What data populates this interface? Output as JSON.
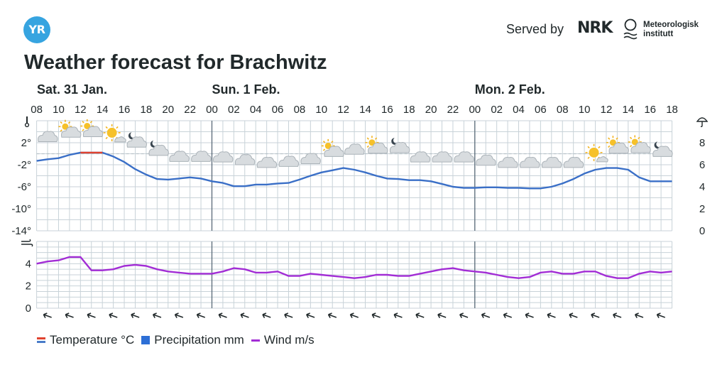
{
  "header": {
    "logo_text": "YR",
    "served_by": "Served by",
    "nrk_logo": "NRK",
    "met_line1": "Meteorologisk",
    "met_line2": "institutt",
    "title": "Weather forecast for Brachwitz"
  },
  "legend": {
    "temperature": "Temperature °C",
    "precipitation": "Precipitation mm",
    "wind": "Wind m/s"
  },
  "colors": {
    "temperature_line": "#3a6fc7",
    "temperature_warm": "#e0422f",
    "wind_line": "#a22dd5",
    "grid": "#c8d2d8",
    "day_divider": "#5a6a78",
    "logo": "#36a4e0"
  },
  "chart_data": {
    "type": "line",
    "days": [
      {
        "label": "Sat. 31 Jan.",
        "start_index": 0
      },
      {
        "label": "Sun. 1 Feb.",
        "start_index": 8
      },
      {
        "label": "Mon. 2 Feb.",
        "start_index": 20
      }
    ],
    "hour_labels": [
      "08",
      "10",
      "12",
      "14",
      "16",
      "18",
      "20",
      "22",
      "00",
      "02",
      "04",
      "06",
      "08",
      "10",
      "12",
      "14",
      "16",
      "18",
      "20",
      "22",
      "00",
      "02",
      "04",
      "06",
      "08",
      "10",
      "12",
      "14",
      "16",
      "18"
    ],
    "temperature": {
      "name": "Temperature °C",
      "ylim": [
        -14,
        6
      ],
      "yticks_left": [
        "2°",
        "-2°",
        "-6°",
        "-10°",
        "-14°"
      ],
      "ytick_values": [
        2,
        -2,
        -6,
        -10,
        -14
      ],
      "precip_yticks_right": [
        "8",
        "6",
        "4",
        "2",
        "0"
      ],
      "x": [
        0,
        0.5,
        1,
        1.5,
        2,
        2.5,
        3,
        3.5,
        4,
        4.5,
        5,
        5.5,
        6,
        6.5,
        7,
        7.5,
        8,
        8.5,
        9,
        9.5,
        10,
        10.5,
        11,
        11.5,
        12,
        12.5,
        13,
        13.5,
        14,
        14.5,
        15,
        15.5,
        16,
        16.5,
        17,
        17.5,
        18,
        18.5,
        19,
        19.5,
        20,
        20.5,
        21,
        21.5,
        22,
        22.5,
        23,
        23.5,
        24,
        24.5,
        25,
        25.5,
        26,
        26.5,
        27,
        27.5,
        28,
        28.5,
        29
      ],
      "values": [
        -1.3,
        -1.0,
        -0.8,
        -0.2,
        0.2,
        0.2,
        0.2,
        -0.5,
        -1.5,
        -2.8,
        -3.8,
        -4.6,
        -4.7,
        -4.5,
        -4.3,
        -4.5,
        -5.0,
        -5.3,
        -5.9,
        -5.9,
        -5.6,
        -5.6,
        -5.4,
        -5.3,
        -4.7,
        -4.0,
        -3.4,
        -3.0,
        -2.6,
        -2.9,
        -3.4,
        -4.0,
        -4.5,
        -4.6,
        -4.8,
        -4.8,
        -5.0,
        -5.5,
        -6.0,
        -6.2,
        -6.2,
        -6.1,
        -6.1,
        -6.2,
        -6.2,
        -6.3,
        -6.3,
        -6.0,
        -5.4,
        -4.6,
        -3.6,
        -2.9,
        -2.6,
        -2.6,
        -2.9,
        -4.3,
        -5.0,
        -5.0,
        -5.0
      ]
    },
    "wind": {
      "name": "Wind m/s",
      "ylim": [
        0,
        6
      ],
      "yticks": [
        "4",
        "2",
        "0"
      ],
      "ytick_values": [
        4,
        2,
        0
      ],
      "x": [
        0,
        0.5,
        1,
        1.5,
        2,
        2.5,
        3,
        3.5,
        4,
        4.5,
        5,
        5.5,
        6,
        6.5,
        7,
        7.5,
        8,
        8.5,
        9,
        9.5,
        10,
        10.5,
        11,
        11.5,
        12,
        12.5,
        13,
        13.5,
        14,
        14.5,
        15,
        15.5,
        16,
        16.5,
        17,
        17.5,
        18,
        18.5,
        19,
        19.5,
        20,
        20.5,
        21,
        21.5,
        22,
        22.5,
        23,
        23.5,
        24,
        24.5,
        25,
        25.5,
        26,
        26.5,
        27,
        27.5,
        28,
        28.5,
        29
      ],
      "values": [
        4.0,
        4.2,
        4.3,
        4.6,
        4.6,
        3.4,
        3.4,
        3.5,
        3.8,
        3.9,
        3.8,
        3.5,
        3.3,
        3.2,
        3.1,
        3.1,
        3.1,
        3.3,
        3.6,
        3.5,
        3.2,
        3.2,
        3.3,
        2.9,
        2.9,
        3.1,
        3.0,
        2.9,
        2.8,
        2.7,
        2.8,
        3.0,
        3.0,
        2.9,
        2.9,
        3.1,
        3.3,
        3.5,
        3.6,
        3.4,
        3.3,
        3.2,
        3.0,
        2.8,
        2.7,
        2.8,
        3.2,
        3.3,
        3.1,
        3.1,
        3.3,
        3.3,
        2.9,
        2.7,
        2.7,
        3.1,
        3.3,
        3.2,
        3.3
      ]
    },
    "wind_direction_arrows": [
      "sw",
      "sw",
      "sw",
      "sw",
      "sw",
      "sw",
      "sw",
      "sw",
      "sw",
      "sw",
      "sw",
      "sw",
      "sw",
      "sw",
      "sw",
      "sw",
      "sw",
      "sw",
      "sw",
      "sw",
      "sw",
      "sw",
      "sw",
      "sw",
      "sw",
      "sw",
      "sw",
      "sw",
      "sw",
      "sw"
    ],
    "symbols": [
      {
        "x": 0.5,
        "temp": 3.1,
        "icon": "cloud"
      },
      {
        "x": 1.5,
        "temp": 3.9,
        "icon": "partly-cloudy-day"
      },
      {
        "x": 2.5,
        "temp": 4.0,
        "icon": "partly-cloudy-day"
      },
      {
        "x": 3.5,
        "temp": 3.3,
        "icon": "sun-cloud"
      },
      {
        "x": 4.5,
        "temp": 2.1,
        "icon": "partly-cloudy-night"
      },
      {
        "x": 5.5,
        "temp": 0.6,
        "icon": "partly-cloudy-night"
      },
      {
        "x": 6.5,
        "temp": -0.5,
        "icon": "cloud"
      },
      {
        "x": 7.5,
        "temp": -0.5,
        "icon": "cloud"
      },
      {
        "x": 8.5,
        "temp": -0.6,
        "icon": "cloud"
      },
      {
        "x": 9.5,
        "temp": -1.1,
        "icon": "cloud"
      },
      {
        "x": 10.5,
        "temp": -1.6,
        "icon": "cloud"
      },
      {
        "x": 11.5,
        "temp": -1.4,
        "icon": "cloud"
      },
      {
        "x": 12.5,
        "temp": -0.9,
        "icon": "cloud"
      },
      {
        "x": 13.5,
        "temp": 0.4,
        "icon": "partly-cloudy-day"
      },
      {
        "x": 14.5,
        "temp": 0.8,
        "icon": "cloud"
      },
      {
        "x": 15.5,
        "temp": 1.0,
        "icon": "partly-cloudy-day"
      },
      {
        "x": 16.5,
        "temp": 1.1,
        "icon": "partly-cloudy-night"
      },
      {
        "x": 17.5,
        "temp": -0.6,
        "icon": "cloud"
      },
      {
        "x": 18.5,
        "temp": -0.6,
        "icon": "cloud"
      },
      {
        "x": 19.5,
        "temp": -0.6,
        "icon": "cloud"
      },
      {
        "x": 20.5,
        "temp": -1.2,
        "icon": "cloud"
      },
      {
        "x": 21.5,
        "temp": -1.6,
        "icon": "cloud"
      },
      {
        "x": 22.5,
        "temp": -1.6,
        "icon": "cloud"
      },
      {
        "x": 23.5,
        "temp": -1.6,
        "icon": "cloud"
      },
      {
        "x": 24.5,
        "temp": -1.6,
        "icon": "cloud"
      },
      {
        "x": 25.5,
        "temp": -0.3,
        "icon": "sun-cloud"
      },
      {
        "x": 26.5,
        "temp": 1.0,
        "icon": "partly-cloudy-day"
      },
      {
        "x": 27.5,
        "temp": 1.1,
        "icon": "partly-cloudy-day"
      },
      {
        "x": 28.5,
        "temp": 0.4,
        "icon": "partly-cloudy-night"
      }
    ]
  }
}
